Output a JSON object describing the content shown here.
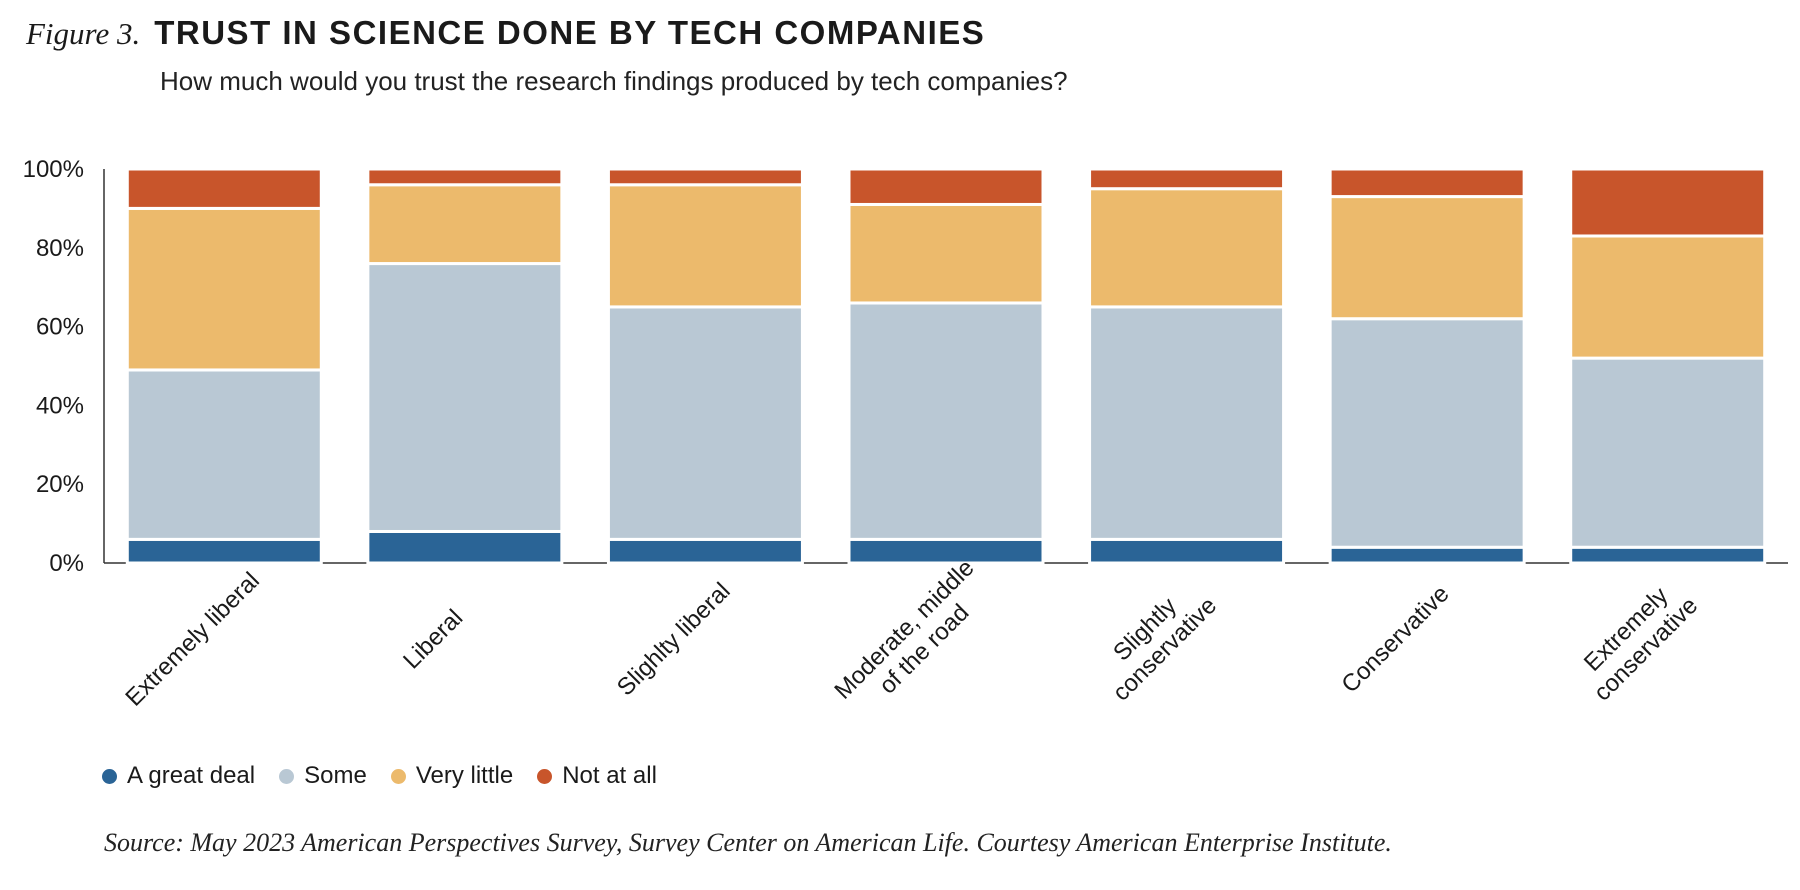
{
  "header": {
    "figure_label": "Figure 3.",
    "title": "TRUST IN SCIENCE DONE BY TECH COMPANIES",
    "subtitle": "How much would you trust the research findings produced by tech companies?"
  },
  "source": "Source: May 2023 American Perspectives Survey, Survey Center on American Life. Courtesy American Enterprise Institute.",
  "chart_data": {
    "type": "bar",
    "stacked": true,
    "title": "TRUST IN SCIENCE DONE BY TECH COMPANIES",
    "subtitle": "How much would you trust the research findings produced by tech companies?",
    "categories": [
      [
        "Extremely liberal"
      ],
      [
        "Liberal"
      ],
      [
        "Slighlty liberal"
      ],
      [
        "Moderate, middle",
        "of the road"
      ],
      [
        "Slightly",
        "conservative"
      ],
      [
        "Conservative"
      ],
      [
        "Extremely",
        "conservative"
      ]
    ],
    "series": [
      {
        "name": "A great deal",
        "color": "#2a6496",
        "values": [
          6,
          8,
          6,
          6,
          6,
          4,
          4
        ]
      },
      {
        "name": "Some",
        "color": "#b9c8d4",
        "values": [
          43,
          68,
          59,
          60,
          59,
          58,
          48
        ]
      },
      {
        "name": "Very little",
        "color": "#ecba6c",
        "values": [
          41,
          20,
          31,
          25,
          30,
          31,
          31
        ]
      },
      {
        "name": "Not at all",
        "color": "#c8552b",
        "values": [
          10,
          4,
          4,
          9,
          5,
          7,
          17
        ]
      }
    ],
    "ylim": [
      0,
      100
    ],
    "yticks": [
      "0%",
      "20%",
      "40%",
      "60%",
      "80%",
      "100%"
    ],
    "ytick_values": [
      0,
      20,
      40,
      60,
      80,
      100
    ],
    "xlabel": "",
    "ylabel": "",
    "grid": false,
    "legend_position": "bottom-left"
  }
}
